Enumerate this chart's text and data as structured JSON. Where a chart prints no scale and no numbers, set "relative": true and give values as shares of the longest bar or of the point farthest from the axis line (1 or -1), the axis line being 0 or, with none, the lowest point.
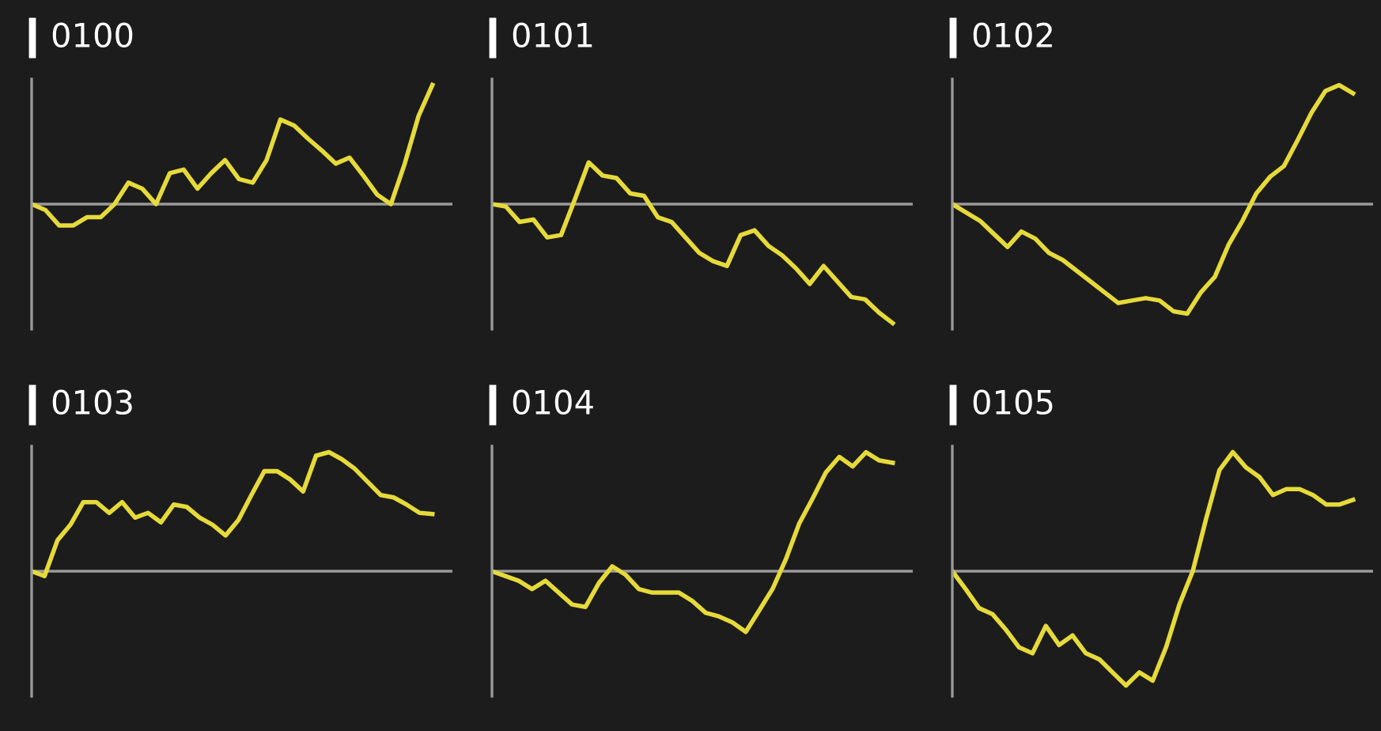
{
  "chart_data": [
    {
      "type": "line",
      "title": "0100",
      "relative": true,
      "categories": [
        null,
        null,
        null,
        null,
        null,
        null,
        null,
        null,
        null,
        null,
        null,
        null,
        null,
        null,
        null,
        null,
        null,
        null,
        null,
        null,
        null,
        null,
        null,
        null,
        null,
        null,
        null,
        null,
        null,
        null
      ],
      "series": [
        {
          "color": "#e6da3a",
          "values": [
            0,
            -0.05,
            -0.18,
            -0.18,
            -0.11,
            -0.11,
            0,
            0.18,
            0.13,
            0,
            0.26,
            0.29,
            0.13,
            0.26,
            0.37,
            0.21,
            0.18,
            0.37,
            0.71,
            0.66,
            0.55,
            0.45,
            0.34,
            0.39,
            0.24,
            0.08,
            0,
            0.34,
            0.74,
            1.0
          ]
        }
      ]
    },
    {
      "type": "line",
      "title": "0101",
      "relative": true,
      "categories": [
        null,
        null,
        null,
        null,
        null,
        null,
        null,
        null,
        null,
        null,
        null,
        null,
        null,
        null,
        null,
        null,
        null,
        null,
        null,
        null,
        null,
        null,
        null,
        null,
        null,
        null,
        null,
        null,
        null,
        null
      ],
      "series": [
        {
          "color": "#e6da3a",
          "values": [
            0,
            -0.02,
            -0.15,
            -0.13,
            -0.28,
            -0.26,
            0.04,
            0.35,
            0.24,
            0.22,
            0.09,
            0.07,
            -0.11,
            -0.15,
            -0.28,
            -0.41,
            -0.48,
            -0.52,
            -0.26,
            -0.22,
            -0.35,
            -0.43,
            -0.54,
            -0.67,
            -0.52,
            -0.65,
            -0.78,
            -0.8,
            -0.91,
            -1.0
          ]
        }
      ]
    },
    {
      "type": "line",
      "title": "0102",
      "relative": true,
      "categories": [
        null,
        null,
        null,
        null,
        null,
        null,
        null,
        null,
        null,
        null,
        null,
        null,
        null,
        null,
        null,
        null,
        null,
        null,
        null,
        null,
        null,
        null,
        null,
        null,
        null,
        null,
        null,
        null,
        null,
        null
      ],
      "series": [
        {
          "color": "#e6da3a",
          "values": [
            0,
            -0.07,
            -0.14,
            -0.25,
            -0.36,
            -0.23,
            -0.29,
            -0.41,
            -0.47,
            -0.56,
            -0.65,
            -0.74,
            -0.83,
            -0.81,
            -0.79,
            -0.81,
            -0.9,
            -0.92,
            -0.74,
            -0.61,
            -0.34,
            -0.14,
            0.09,
            0.23,
            0.32,
            0.54,
            0.77,
            0.95,
            1.0,
            0.93
          ]
        }
      ]
    },
    {
      "type": "line",
      "title": "0103",
      "relative": true,
      "categories": [
        null,
        null,
        null,
        null,
        null,
        null,
        null,
        null,
        null,
        null,
        null,
        null,
        null,
        null,
        null,
        null,
        null,
        null,
        null,
        null,
        null,
        null,
        null,
        null,
        null,
        null,
        null,
        null,
        null,
        null,
        null,
        null
      ],
      "series": [
        {
          "color": "#e6da3a",
          "values": [
            0,
            -0.04,
            0.26,
            0.39,
            0.58,
            0.58,
            0.49,
            0.58,
            0.45,
            0.49,
            0.41,
            0.56,
            0.54,
            0.45,
            0.39,
            0.3,
            0.43,
            0.64,
            0.84,
            0.84,
            0.77,
            0.67,
            0.97,
            1.0,
            0.94,
            0.86,
            0.75,
            0.64,
            0.62,
            0.56,
            0.49,
            0.48
          ]
        }
      ]
    },
    {
      "type": "line",
      "title": "0104",
      "relative": true,
      "categories": [
        null,
        null,
        null,
        null,
        null,
        null,
        null,
        null,
        null,
        null,
        null,
        null,
        null,
        null,
        null,
        null,
        null,
        null,
        null,
        null,
        null,
        null,
        null,
        null,
        null,
        null,
        null,
        null,
        null,
        null,
        null
      ],
      "series": [
        {
          "color": "#e6da3a",
          "values": [
            0,
            -0.04,
            -0.08,
            -0.15,
            -0.08,
            -0.18,
            -0.28,
            -0.3,
            -0.1,
            0.04,
            -0.03,
            -0.15,
            -0.18,
            -0.18,
            -0.18,
            -0.25,
            -0.35,
            -0.38,
            -0.43,
            -0.51,
            -0.33,
            -0.15,
            0.1,
            0.4,
            0.61,
            0.83,
            0.96,
            0.88,
            1.0,
            0.93,
            0.91
          ]
        }
      ]
    },
    {
      "type": "line",
      "title": "0105",
      "relative": true,
      "categories": [
        null,
        null,
        null,
        null,
        null,
        null,
        null,
        null,
        null,
        null,
        null,
        null,
        null,
        null,
        null,
        null,
        null,
        null,
        null,
        null,
        null,
        null,
        null,
        null,
        null,
        null,
        null,
        null,
        null,
        null,
        null
      ],
      "series": [
        {
          "color": "#e6da3a",
          "values": [
            0,
            -0.15,
            -0.31,
            -0.36,
            -0.49,
            -0.64,
            -0.69,
            -0.46,
            -0.62,
            -0.54,
            -0.69,
            -0.74,
            -0.85,
            -0.96,
            -0.85,
            -0.92,
            -0.64,
            -0.28,
            0,
            0.44,
            0.85,
            1.0,
            0.87,
            0.79,
            0.64,
            0.69,
            0.69,
            0.64,
            0.56,
            0.56,
            0.6
          ]
        }
      ]
    }
  ]
}
